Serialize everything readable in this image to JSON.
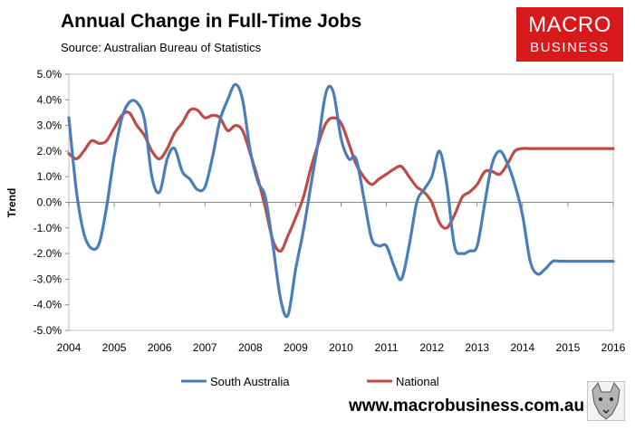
{
  "header": {
    "title": "Annual Change in Full-Time Jobs",
    "source": "Source: Australian Bureau of Statistics"
  },
  "logo": {
    "line1": "MACRO",
    "line2": "BUSINESS"
  },
  "footer": {
    "url": "www.macrobusiness.com.au"
  },
  "colors": {
    "south_australia": "#4a7ebb",
    "national": "#be4b48",
    "logo_bg": "#d7191c"
  },
  "chart_data": {
    "type": "line",
    "title": "Annual Change in Full-Time Jobs",
    "ylabel": "Trend",
    "xlabel": "",
    "ylim": [
      -5,
      5
    ],
    "xlim": [
      2004,
      2016
    ],
    "yticks": [
      "5.0%",
      "4.0%",
      "3.0%",
      "2.0%",
      "1.0%",
      "0.0%",
      "-1.0%",
      "-2.0%",
      "-3.0%",
      "-4.0%",
      "-5.0%"
    ],
    "ytick_values": [
      5,
      4,
      3,
      2,
      1,
      0,
      -1,
      -2,
      -3,
      -4,
      -5
    ],
    "xticks": [
      "2004",
      "2005",
      "2006",
      "2007",
      "2008",
      "2009",
      "2010",
      "2011",
      "2012",
      "2013",
      "2014",
      "2015",
      "2016"
    ],
    "xtick_values": [
      2004,
      2005,
      2006,
      2007,
      2008,
      2009,
      2010,
      2011,
      2012,
      2013,
      2014,
      2015,
      2016
    ],
    "legend_position": "bottom",
    "grid": false,
    "series": [
      {
        "name": "South Australia",
        "color": "#4a7ebb",
        "x": [
          2004.0,
          2004.17,
          2004.33,
          2004.5,
          2004.67,
          2004.83,
          2005.0,
          2005.17,
          2005.33,
          2005.5,
          2005.67,
          2005.83,
          2006.0,
          2006.17,
          2006.33,
          2006.5,
          2006.67,
          2006.83,
          2007.0,
          2007.17,
          2007.33,
          2007.5,
          2007.67,
          2007.83,
          2008.0,
          2008.17,
          2008.33,
          2008.5,
          2008.67,
          2008.83,
          2009.0,
          2009.17,
          2009.33,
          2009.5,
          2009.67,
          2009.83,
          2010.0,
          2010.17,
          2010.33,
          2010.5,
          2010.67,
          2010.83,
          2011.0,
          2011.17,
          2011.33,
          2011.5,
          2011.67,
          2011.83,
          2012.0,
          2012.17,
          2012.33,
          2012.5,
          2012.67,
          2012.83,
          2013.0,
          2013.17,
          2013.33,
          2013.5,
          2013.67,
          2013.83,
          2014.0,
          2014.17,
          2014.33,
          2014.5,
          2014.67,
          2014.83,
          2015.0,
          2015.17,
          2015.33,
          2015.5,
          2015.67,
          2015.83,
          2016.0
        ],
        "y": [
          3.3,
          0.4,
          -1.2,
          -1.8,
          -1.6,
          -0.2,
          1.8,
          3.3,
          3.9,
          3.9,
          3.2,
          1.0,
          0.4,
          1.7,
          2.1,
          1.2,
          0.9,
          0.5,
          0.6,
          1.8,
          3.2,
          4.0,
          4.6,
          4.0,
          2.0,
          0.8,
          0.2,
          -1.7,
          -3.8,
          -4.4,
          -2.6,
          -1.1,
          0.6,
          2.4,
          4.3,
          4.3,
          2.5,
          1.7,
          1.7,
          0.2,
          -1.4,
          -1.7,
          -1.7,
          -2.5,
          -3.0,
          -1.7,
          0.0,
          0.5,
          1.0,
          2.0,
          0.7,
          -1.7,
          -2.0,
          -1.9,
          -1.7,
          0.0,
          1.5,
          2.0,
          1.5,
          0.7,
          -0.5,
          -2.3,
          -2.8,
          -2.6,
          -2.3,
          -2.3,
          -2.3,
          -2.3,
          -2.3,
          -2.3,
          -2.3,
          -2.3,
          -2.3
        ]
      },
      {
        "name": "National",
        "color": "#be4b48",
        "x": [
          2004.0,
          2004.17,
          2004.33,
          2004.5,
          2004.67,
          2004.83,
          2005.0,
          2005.17,
          2005.33,
          2005.5,
          2005.67,
          2005.83,
          2006.0,
          2006.17,
          2006.33,
          2006.5,
          2006.67,
          2006.83,
          2007.0,
          2007.17,
          2007.33,
          2007.5,
          2007.67,
          2007.83,
          2008.0,
          2008.17,
          2008.33,
          2008.5,
          2008.67,
          2008.83,
          2009.0,
          2009.17,
          2009.33,
          2009.5,
          2009.67,
          2009.83,
          2010.0,
          2010.17,
          2010.33,
          2010.5,
          2010.67,
          2010.83,
          2011.0,
          2011.17,
          2011.33,
          2011.5,
          2011.67,
          2011.83,
          2012.0,
          2012.17,
          2012.33,
          2012.5,
          2012.67,
          2012.83,
          2013.0,
          2013.17,
          2013.33,
          2013.5,
          2013.67,
          2013.83,
          2014.0,
          2014.17,
          2014.33,
          2014.5,
          2014.67,
          2014.83,
          2015.0,
          2015.17,
          2015.33,
          2015.5,
          2015.67,
          2015.83,
          2016.0
        ],
        "y": [
          1.9,
          1.7,
          2.0,
          2.4,
          2.3,
          2.4,
          2.9,
          3.4,
          3.5,
          3.0,
          2.6,
          2.0,
          1.7,
          2.1,
          2.7,
          3.1,
          3.6,
          3.6,
          3.3,
          3.4,
          3.3,
          2.8,
          3.0,
          2.8,
          1.9,
          0.9,
          -0.2,
          -1.5,
          -1.9,
          -1.3,
          -0.6,
          0.2,
          1.3,
          2.3,
          3.1,
          3.3,
          3.1,
          2.3,
          1.5,
          1.0,
          0.7,
          0.9,
          1.1,
          1.3,
          1.4,
          1.0,
          0.6,
          0.4,
          0.0,
          -0.8,
          -1.0,
          -0.5,
          0.2,
          0.4,
          0.7,
          1.2,
          1.2,
          1.1,
          1.5,
          2.0,
          2.1,
          2.1,
          2.1,
          2.1,
          2.1,
          2.1,
          2.1,
          2.1,
          2.1,
          2.1,
          2.1,
          2.1,
          2.1
        ]
      }
    ]
  }
}
